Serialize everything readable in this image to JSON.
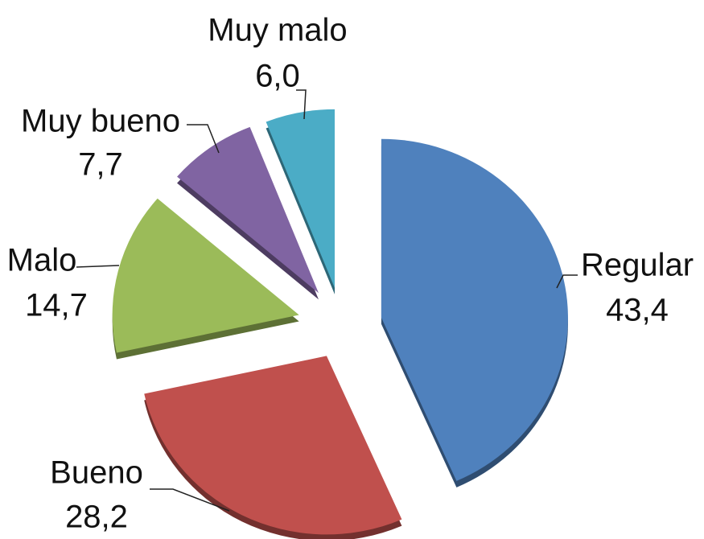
{
  "chart_data": {
    "type": "pie",
    "categories": [
      "Regular",
      "Bueno",
      "Malo",
      "Muy bueno",
      "Muy malo"
    ],
    "values": [
      43.4,
      28.2,
      14.7,
      7.7,
      6.0
    ],
    "value_labels": [
      "43,4",
      "28,2",
      "14,7",
      "7,7",
      "6,0"
    ],
    "colors": [
      "#4f81bd",
      "#c0504d",
      "#9bbb59",
      "#8064a2",
      "#4bacc6"
    ]
  }
}
